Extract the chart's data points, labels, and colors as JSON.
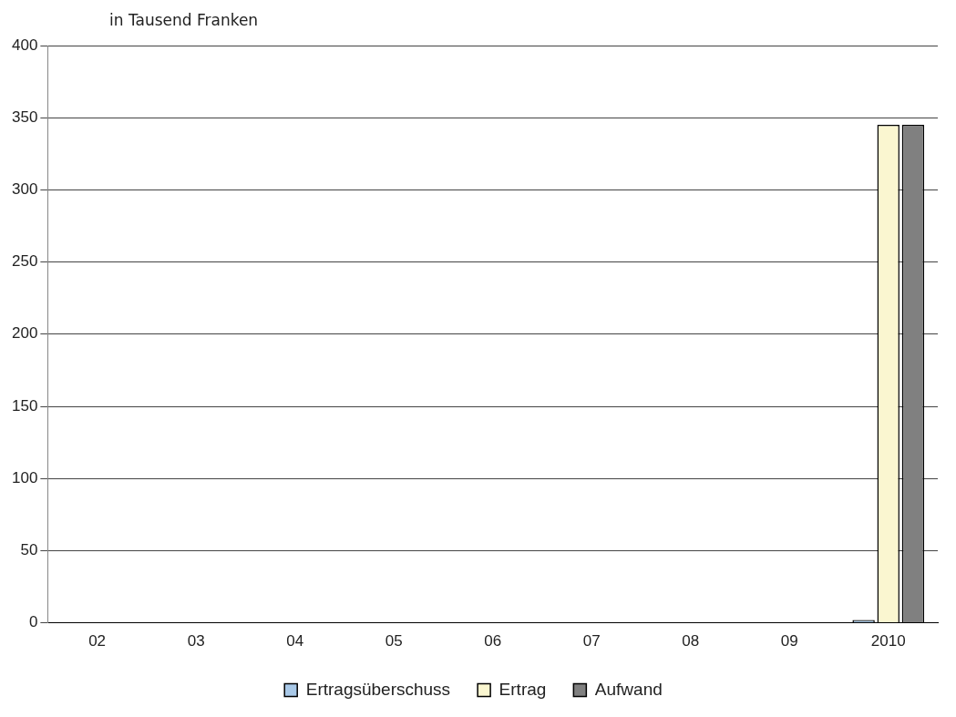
{
  "chart_data": {
    "type": "bar",
    "ylabel": "in Tausend Franken",
    "categories": [
      "02",
      "03",
      "04",
      "05",
      "06",
      "07",
      "08",
      "09",
      "2010"
    ],
    "series": [
      {
        "name": "Ertragsüberschuss",
        "color": "#a9c9e8",
        "values": [
          null,
          null,
          null,
          null,
          null,
          null,
          null,
          null,
          0
        ]
      },
      {
        "name": "Ertrag",
        "color": "#faf6d0",
        "values": [
          null,
          null,
          null,
          null,
          null,
          null,
          null,
          null,
          345
        ]
      },
      {
        "name": "Aufwand",
        "color": "#808080",
        "values": [
          null,
          null,
          null,
          null,
          null,
          null,
          null,
          null,
          345
        ]
      }
    ],
    "ylim": [
      0,
      400
    ],
    "yticks": [
      0,
      50,
      100,
      150,
      200,
      250,
      300,
      350,
      400
    ],
    "grid": "y",
    "legend": "bottom"
  }
}
